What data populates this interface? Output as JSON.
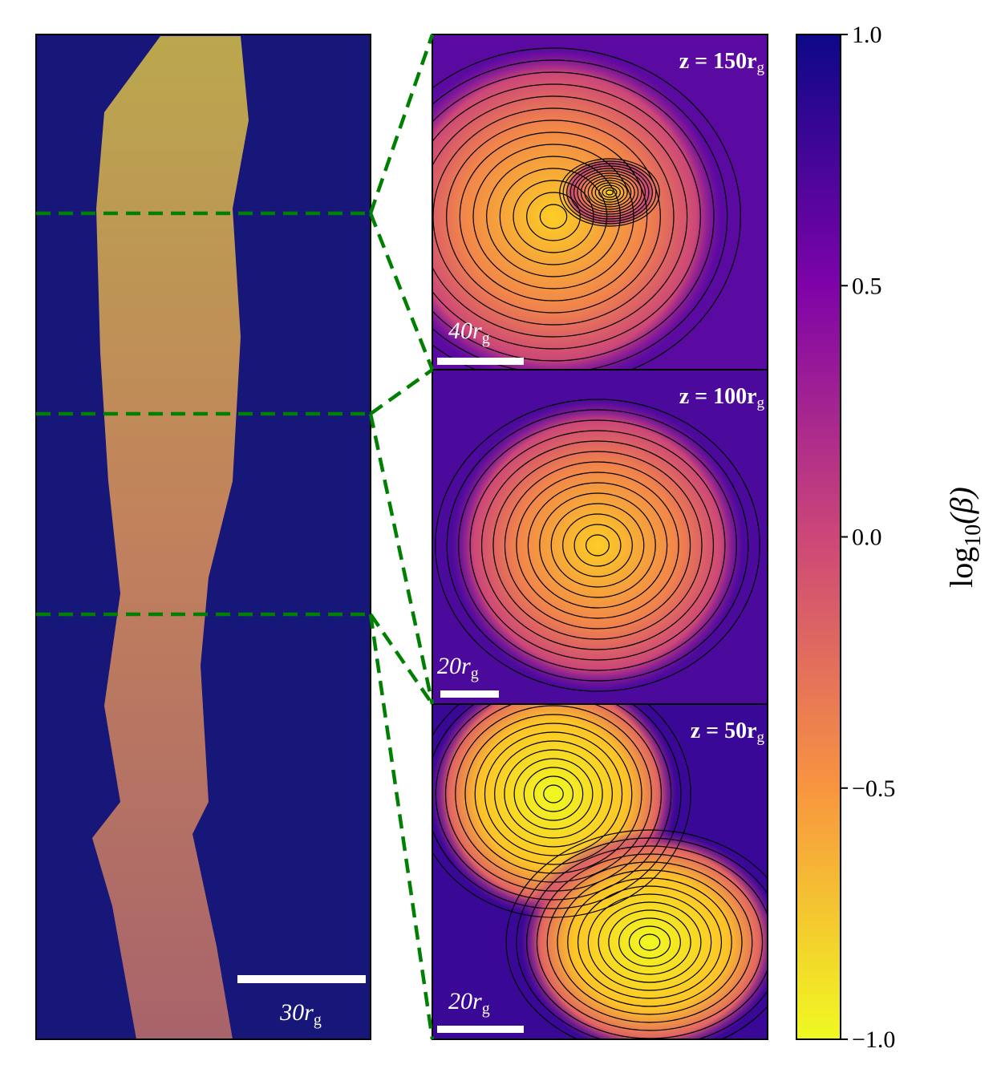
{
  "chart_data": {
    "type": "heatmap",
    "panels": [
      {
        "label": "z = 150r",
        "label_sub": "g",
        "scale": "40r",
        "scale_sub": "g"
      },
      {
        "label": "z = 100r",
        "label_sub": "g",
        "scale": "20r",
        "scale_sub": "g"
      },
      {
        "label": "z = 50r",
        "label_sub": "g",
        "scale": "20r",
        "scale_sub": "g"
      }
    ],
    "overview_scale": "30r",
    "overview_scale_sub": "g",
    "colorbar": {
      "label": "log",
      "label_sub": "10",
      "label_tail": "(β)",
      "lim": [
        -1,
        1
      ],
      "ticks": [
        {
          "value": 1.0,
          "label": "1.0"
        },
        {
          "value": 0.5,
          "label": "0.5"
        },
        {
          "value": 0.0,
          "label": "0.0"
        },
        {
          "value": -0.5,
          "label": "−0.5"
        },
        {
          "value": -1.0,
          "label": "−1.0"
        }
      ],
      "colors": [
        "#0d0887",
        "#7e03a8",
        "#cc4778",
        "#f89540",
        "#f0f921"
      ]
    }
  }
}
